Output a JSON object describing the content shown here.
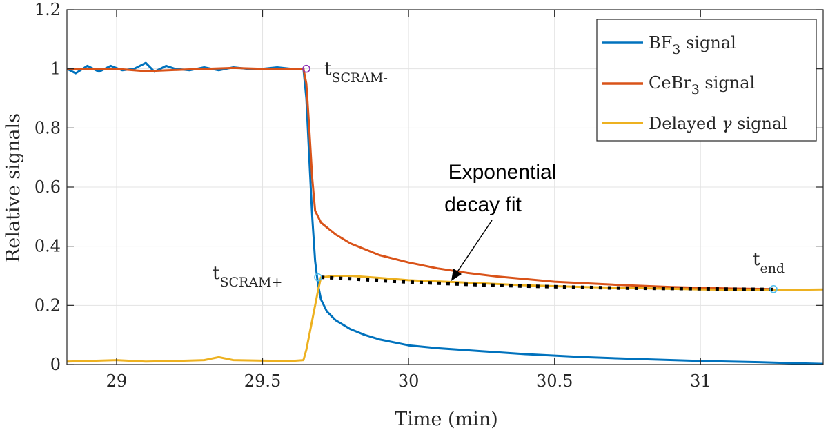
{
  "chart_data": {
    "type": "line",
    "xlabel": "Time (min)",
    "ylabel": "Relative signals",
    "xlim": [
      28.83,
      31.42
    ],
    "ylim": [
      0,
      1.2
    ],
    "xticks": [
      29,
      29.5,
      30,
      30.5,
      31
    ],
    "xtick_labels": [
      "29",
      "29.5",
      "30",
      "30.5",
      "31"
    ],
    "yticks": [
      0,
      0.2,
      0.4,
      0.6,
      0.8,
      1,
      1.2
    ],
    "ytick_labels": [
      "0",
      "0.2",
      "0.4",
      "0.6",
      "0.8",
      "1",
      "1.2"
    ],
    "grid": true,
    "legend_position": "top-right",
    "series": [
      {
        "name": "BF3 signal",
        "label_main": "BF",
        "label_sub": "3",
        "label_tail": " signal",
        "color": "#0072BD",
        "points": [
          [
            28.83,
            1.0
          ],
          [
            28.86,
            0.985
          ],
          [
            28.9,
            1.01
          ],
          [
            28.94,
            0.99
          ],
          [
            28.98,
            1.01
          ],
          [
            29.02,
            0.995
          ],
          [
            29.06,
            1.0
          ],
          [
            29.1,
            1.02
          ],
          [
            29.13,
            0.99
          ],
          [
            29.17,
            1.01
          ],
          [
            29.2,
            1.0
          ],
          [
            29.25,
            0.995
          ],
          [
            29.3,
            1.005
          ],
          [
            29.35,
            0.995
          ],
          [
            29.4,
            1.005
          ],
          [
            29.45,
            1.0
          ],
          [
            29.5,
            1.0
          ],
          [
            29.55,
            1.005
          ],
          [
            29.6,
            1.0
          ],
          [
            29.64,
            1.0
          ],
          [
            29.65,
            0.9
          ],
          [
            29.66,
            0.7
          ],
          [
            29.67,
            0.5
          ],
          [
            29.68,
            0.35
          ],
          [
            29.69,
            0.27
          ],
          [
            29.7,
            0.22
          ],
          [
            29.72,
            0.18
          ],
          [
            29.75,
            0.15
          ],
          [
            29.8,
            0.12
          ],
          [
            29.85,
            0.1
          ],
          [
            29.9,
            0.085
          ],
          [
            30.0,
            0.065
          ],
          [
            30.1,
            0.055
          ],
          [
            30.25,
            0.045
          ],
          [
            30.4,
            0.035
          ],
          [
            30.6,
            0.025
          ],
          [
            30.8,
            0.018
          ],
          [
            31.0,
            0.012
          ],
          [
            31.2,
            0.008
          ],
          [
            31.3,
            0.005
          ],
          [
            31.42,
            0.002
          ]
        ]
      },
      {
        "name": "CeBr3 signal",
        "label_main": "CeBr",
        "label_sub": "3",
        "label_tail": " signal",
        "color": "#D95319",
        "points": [
          [
            28.83,
            1.0
          ],
          [
            29.0,
            1.0
          ],
          [
            29.1,
            0.992
          ],
          [
            29.25,
            0.998
          ],
          [
            29.4,
            1.003
          ],
          [
            29.5,
            1.0
          ],
          [
            29.64,
            1.0
          ],
          [
            29.65,
            0.95
          ],
          [
            29.66,
            0.8
          ],
          [
            29.67,
            0.63
          ],
          [
            29.68,
            0.52
          ],
          [
            29.7,
            0.48
          ],
          [
            29.75,
            0.44
          ],
          [
            29.8,
            0.41
          ],
          [
            29.9,
            0.37
          ],
          [
            30.0,
            0.345
          ],
          [
            30.1,
            0.325
          ],
          [
            30.2,
            0.31
          ],
          [
            30.3,
            0.298
          ],
          [
            30.5,
            0.28
          ],
          [
            30.7,
            0.27
          ],
          [
            30.9,
            0.262
          ],
          [
            31.1,
            0.257
          ],
          [
            31.25,
            0.255
          ]
        ]
      },
      {
        "name": "Delayed gamma signal",
        "label_main": "Delayed ",
        "label_greek": "γ",
        "label_tail": " signal",
        "color": "#EDB120",
        "points": [
          [
            28.83,
            0.01
          ],
          [
            28.9,
            0.012
          ],
          [
            29.0,
            0.015
          ],
          [
            29.1,
            0.01
          ],
          [
            29.2,
            0.012
          ],
          [
            29.3,
            0.015
          ],
          [
            29.35,
            0.025
          ],
          [
            29.4,
            0.015
          ],
          [
            29.5,
            0.013
          ],
          [
            29.6,
            0.012
          ],
          [
            29.64,
            0.015
          ],
          [
            29.65,
            0.05
          ],
          [
            29.67,
            0.15
          ],
          [
            29.69,
            0.25
          ],
          [
            29.7,
            0.295
          ],
          [
            29.75,
            0.3
          ],
          [
            29.8,
            0.3
          ],
          [
            29.9,
            0.293
          ],
          [
            30.0,
            0.285
          ],
          [
            30.2,
            0.277
          ],
          [
            30.4,
            0.268
          ],
          [
            30.6,
            0.262
          ],
          [
            30.8,
            0.258
          ],
          [
            31.0,
            0.254
          ],
          [
            31.25,
            0.252
          ],
          [
            31.42,
            0.254
          ]
        ]
      },
      {
        "name": "Exponential decay fit",
        "color": "#000000",
        "style": "dotted",
        "points": [
          [
            29.7,
            0.295
          ],
          [
            29.8,
            0.29
          ],
          [
            29.9,
            0.284
          ],
          [
            30.0,
            0.279
          ],
          [
            30.1,
            0.275
          ],
          [
            30.2,
            0.271
          ],
          [
            30.3,
            0.268
          ],
          [
            30.4,
            0.265
          ],
          [
            30.5,
            0.263
          ],
          [
            30.6,
            0.261
          ],
          [
            30.7,
            0.259
          ],
          [
            30.8,
            0.258
          ],
          [
            30.9,
            0.257
          ],
          [
            31.0,
            0.256
          ],
          [
            31.1,
            0.255
          ],
          [
            31.25,
            0.254
          ]
        ]
      }
    ],
    "markers": [
      {
        "name": "t_SCRAM- marker",
        "x": 29.65,
        "y": 1.0,
        "color": "#8B2DB5"
      },
      {
        "name": "t_SCRAM+ marker",
        "x": 29.69,
        "y": 0.295,
        "color": "#4DBEEE"
      },
      {
        "name": "t_end marker",
        "x": 31.25,
        "y": 0.255,
        "color": "#4DBEEE"
      }
    ],
    "annotations": {
      "fit_label_line1": "Exponential",
      "fit_label_line2": "decay fit",
      "t_scram_minus_main": "t",
      "t_scram_minus_sub": "SCRAM-",
      "t_scram_plus_main": "t",
      "t_scram_plus_sub": "SCRAM+",
      "t_end_main": "t",
      "t_end_sub": "end"
    }
  }
}
